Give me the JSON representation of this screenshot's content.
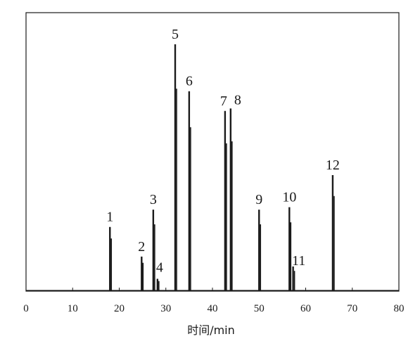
{
  "chart_data": {
    "type": "line",
    "xlabel": "时间/min",
    "ylabel": "",
    "title": "",
    "xlim": [
      0,
      80
    ],
    "ylim": [
      0,
      1.0
    ],
    "x_ticks": [
      0,
      10,
      20,
      30,
      40,
      50,
      60,
      70,
      80
    ],
    "x_tick_labels": [
      "0",
      "10",
      "20",
      "30",
      "40",
      "50",
      "60",
      "70",
      "80"
    ],
    "grid": false,
    "legend": "none",
    "peaks": [
      {
        "label": "1",
        "x": 18.0,
        "y": 0.26
      },
      {
        "label": "2",
        "x": 24.8,
        "y": 0.14
      },
      {
        "label": "3",
        "x": 27.3,
        "y": 0.33
      },
      {
        "label": "4",
        "x": 28.2,
        "y": 0.05
      },
      {
        "label": "5",
        "x": 32.0,
        "y": 1.0
      },
      {
        "label": "6",
        "x": 35.0,
        "y": 0.81
      },
      {
        "label": "7",
        "x": 42.7,
        "y": 0.73
      },
      {
        "label": "8",
        "x": 43.9,
        "y": 0.74
      },
      {
        "label": "9",
        "x": 50.0,
        "y": 0.33
      },
      {
        "label": "10",
        "x": 56.5,
        "y": 0.34
      },
      {
        "label": "11",
        "x": 57.3,
        "y": 0.1
      },
      {
        "label": "12",
        "x": 65.8,
        "y": 0.47
      }
    ],
    "color": "#1a1a1a"
  }
}
